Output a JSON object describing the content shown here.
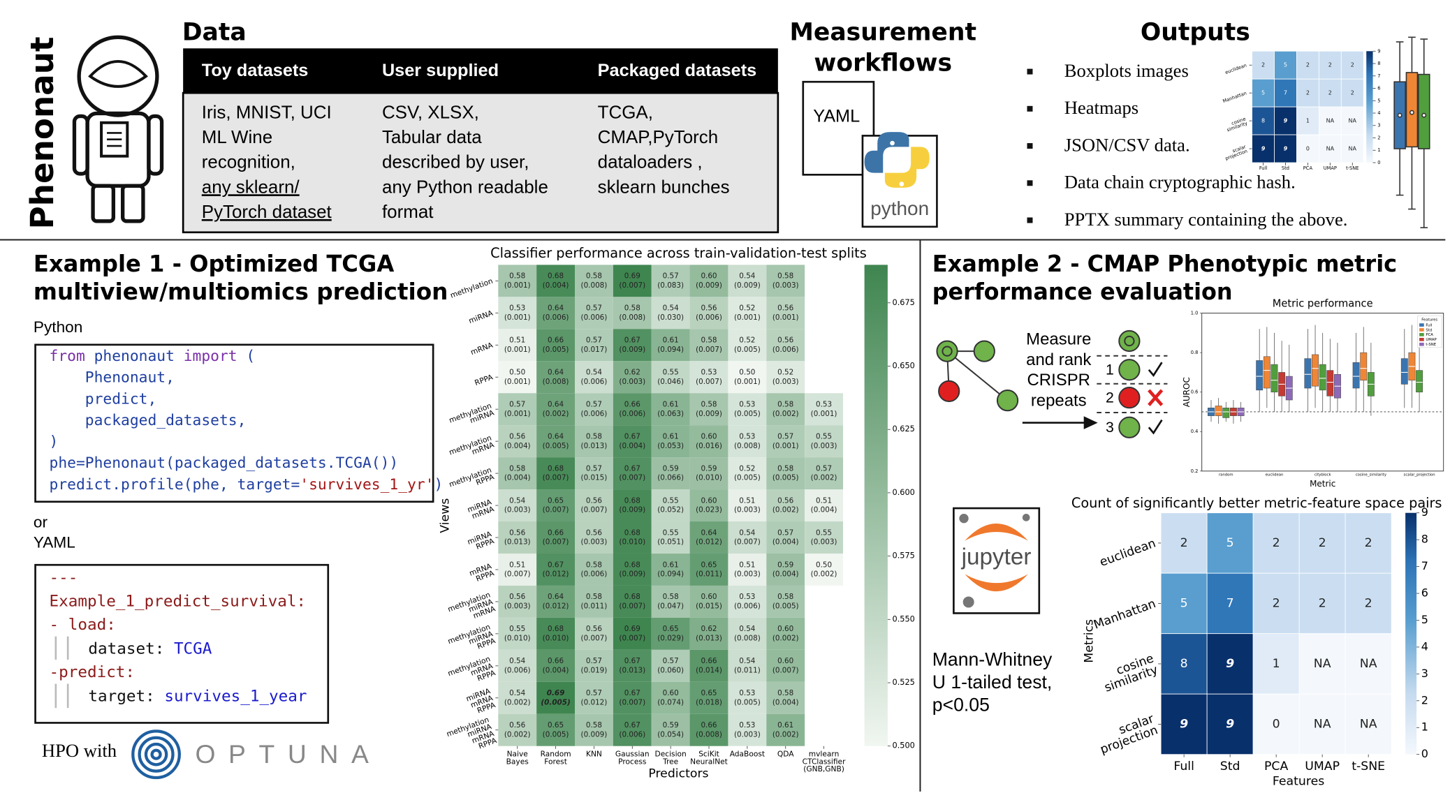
{
  "logo_text": "Phenonaut",
  "data_section": {
    "title": "Data",
    "columns": [
      {
        "header": "Toy datasets",
        "lines": [
          "Iris, MNIST,  UCI",
          "ML Wine",
          "recognition,",
          "any sklearn/",
          "PyTorch  dataset"
        ]
      },
      {
        "header": "User supplied",
        "lines": [
          "CSV, XLSX,",
          "Tabular data",
          "described by user,",
          "any Python readable",
          "format"
        ]
      },
      {
        "header": "Packaged datasets",
        "lines": [
          "TCGA,",
          "CMAP,PyTorch",
          "dataloaders ,",
          "sklearn bunches"
        ]
      }
    ]
  },
  "workflows": {
    "title_lines": [
      "Measurement",
      "workflows"
    ],
    "yaml_label": "YAML",
    "python_label": "python"
  },
  "outputs": {
    "title": "Outputs",
    "items": [
      "Boxplots images",
      "Heatmaps",
      "JSON/CSV data.",
      "Data chain cryptographic hash.",
      "PPTX summary containing the above."
    ]
  },
  "example1": {
    "title_lines": [
      "Example 1 - Optimized TCGA",
      "multiview/multiomics prediction"
    ],
    "code_label": "Python",
    "code_lines": [
      "from phenonaut import (",
      "    Phenonaut,",
      "    predict,",
      "    packaged_datasets,",
      ")",
      "phe=Phenonaut(packaged_datasets.TCGA())",
      "predict.profile(phe, target='survives_1_yr')"
    ],
    "or_text": "or",
    "yaml_label": "YAML",
    "yaml_lines": [
      "---",
      "Example_1_predict_survival:",
      "- load:",
      "dataset: TCGA",
      "-predict:",
      "target: survives_1_year"
    ],
    "hpo_text": "HPO with",
    "optuna_text": "OPTUNA"
  },
  "example2": {
    "title_lines": [
      "Example 2 - CMAP Phenotypic metric",
      "performance evaluation"
    ],
    "workflow_lines": [
      "Measure",
      "and rank",
      "CRISPR",
      "repeats"
    ],
    "rank_labels": [
      "1",
      "2",
      "3"
    ],
    "jupyter_text": "jupyter",
    "test_lines": [
      "Mann-Whitney",
      "U 1-tailed test,",
      "p<0.05"
    ]
  },
  "chart_data": [
    {
      "type": "heatmap",
      "title": "Classifier performance across train-validation-test splits",
      "x_label": "Predictors",
      "y_label": "Views",
      "x_categories": [
        [
          "Naive",
          "Bayes"
        ],
        [
          "Random",
          "Forest"
        ],
        [
          "KNN"
        ],
        [
          "Gaussian",
          "Process"
        ],
        [
          "Decision",
          "Tree"
        ],
        [
          "SciKit",
          "NeuralNet"
        ],
        [
          "AdaBoost"
        ],
        [
          "QDA"
        ],
        [
          "mvlearn",
          "CTClassifier",
          "(GNB,GNB)"
        ]
      ],
      "y_categories": [
        [
          "methylation"
        ],
        [
          "miRNA"
        ],
        [
          "mRNA"
        ],
        [
          "RPPA"
        ],
        [
          "methylation",
          "miRNA"
        ],
        [
          "methylation",
          "mRNA"
        ],
        [
          "methylation",
          "RPPA"
        ],
        [
          "miRNA",
          "mRNA"
        ],
        [
          "miRNA",
          "RPPA"
        ],
        [
          "mRNA",
          "RPPA"
        ],
        [
          "methylation",
          "miRNA",
          "mRNA"
        ],
        [
          "methylation",
          "miRNA",
          "RPPA"
        ],
        [
          "methylation",
          "mRNA",
          "RPPA"
        ],
        [
          "miRNA",
          "mRNA",
          "RPPA"
        ],
        [
          "methylation",
          "miRNA",
          "mRNA",
          "RPPA"
        ]
      ],
      "values": [
        [
          0.58,
          0.68,
          0.58,
          0.69,
          0.57,
          0.6,
          0.54,
          0.58,
          null
        ],
        [
          0.53,
          0.64,
          0.57,
          0.58,
          0.54,
          0.56,
          0.52,
          0.56,
          null
        ],
        [
          0.51,
          0.66,
          0.57,
          0.67,
          0.61,
          0.58,
          0.52,
          0.56,
          null
        ],
        [
          0.5,
          0.64,
          0.54,
          0.62,
          0.55,
          0.53,
          0.5,
          0.52,
          null
        ],
        [
          0.57,
          0.64,
          0.57,
          0.66,
          0.61,
          0.58,
          0.53,
          0.58,
          0.53
        ],
        [
          0.56,
          0.64,
          0.58,
          0.67,
          0.61,
          0.6,
          0.53,
          0.57,
          0.55
        ],
        [
          0.58,
          0.68,
          0.57,
          0.67,
          0.59,
          0.59,
          0.52,
          0.58,
          0.57
        ],
        [
          0.54,
          0.65,
          0.56,
          0.68,
          0.55,
          0.6,
          0.51,
          0.56,
          0.51
        ],
        [
          0.56,
          0.66,
          0.56,
          0.68,
          0.55,
          0.64,
          0.54,
          0.57,
          0.55
        ],
        [
          0.51,
          0.67,
          0.58,
          0.68,
          0.61,
          0.65,
          0.51,
          0.59,
          0.5
        ],
        [
          0.56,
          0.64,
          0.58,
          0.68,
          0.58,
          0.6,
          0.53,
          0.58,
          null
        ],
        [
          0.55,
          0.68,
          0.56,
          0.69,
          0.65,
          0.62,
          0.54,
          0.6,
          null
        ],
        [
          0.54,
          0.66,
          0.57,
          0.67,
          0.57,
          0.66,
          0.54,
          0.6,
          null
        ],
        [
          0.54,
          0.69,
          0.57,
          0.67,
          0.6,
          0.65,
          0.53,
          0.58,
          null
        ],
        [
          0.56,
          0.65,
          0.58,
          0.67,
          0.59,
          0.66,
          0.53,
          0.61,
          null
        ]
      ],
      "value_labels": [
        [
          "0.58",
          "0.68",
          "0.58",
          "0.69",
          "0.57",
          "0.60",
          "0.54",
          "0.58",
          null
        ],
        [
          "0.53",
          "0.64",
          "0.57",
          "0.58",
          "0.54",
          "0.56",
          "0.52",
          "0.56",
          null
        ],
        [
          "0.51",
          "0.66",
          "0.57",
          "0.67",
          "0.61",
          "0.58",
          "0.52",
          "0.56",
          null
        ],
        [
          "0.50",
          "0.64",
          "0.54",
          "0.62",
          "0.55",
          "0.53",
          "0.50",
          "0.52",
          null
        ],
        [
          "0.57",
          "0.64",
          "0.57",
          "0.66",
          "0.61",
          "0.58",
          "0.53",
          "0.58",
          "0.53"
        ],
        [
          "0.56",
          "0.64",
          "0.58",
          "0.67",
          "0.61",
          "0.60",
          "0.53",
          "0.57",
          "0.55"
        ],
        [
          "0.58",
          "0.68",
          "0.57",
          "0.67",
          "0.59",
          "0.59",
          "0.52",
          "0.58",
          "0.57"
        ],
        [
          "0.54",
          "0.65",
          "0.56",
          "0.68",
          "0.55",
          "0.60",
          "0.51",
          "0.56",
          "0.51"
        ],
        [
          "0.56",
          "0.66",
          "0.56",
          "0.68",
          "0.55",
          "0.64",
          "0.54",
          "0.57",
          "0.55"
        ],
        [
          "0.51",
          "0.67",
          "0.58",
          "0.68",
          "0.61",
          "0.65",
          "0.51",
          "0.59",
          "0.50"
        ],
        [
          "0.56",
          "0.64",
          "0.58",
          "0.68",
          "0.58",
          "0.60",
          "0.53",
          "0.58",
          null
        ],
        [
          "0.55",
          "0.68",
          "0.56",
          "0.69",
          "0.65",
          "0.62",
          "0.54",
          "0.60",
          null
        ],
        [
          "0.54",
          "0.66",
          "0.57",
          "0.67",
          "0.57",
          "0.66",
          "0.54",
          "0.60",
          null
        ],
        [
          "0.54",
          "0.69",
          "0.57",
          "0.67",
          "0.60",
          "0.65",
          "0.53",
          "0.58",
          null
        ],
        [
          "0.56",
          "0.65",
          "0.58",
          "0.67",
          "0.59",
          "0.66",
          "0.53",
          "0.61",
          null
        ]
      ],
      "error_labels": [
        [
          "(0.001)",
          "(0.004)",
          "(0.008)",
          "(0.007)",
          "(0.083)",
          "(0.009)",
          "(0.009)",
          "(0.003)",
          null
        ],
        [
          "(0.001)",
          "(0.006)",
          "(0.006)",
          "(0.008)",
          "(0.030)",
          "(0.006)",
          "(0.001)",
          "(0.001)",
          null
        ],
        [
          "(0.001)",
          "(0.005)",
          "(0.017)",
          "(0.009)",
          "(0.094)",
          "(0.007)",
          "(0.005)",
          "(0.006)",
          null
        ],
        [
          "(0.001)",
          "(0.008)",
          "(0.006)",
          "(0.003)",
          "(0.046)",
          "(0.007)",
          "(0.001)",
          "(0.003)",
          null
        ],
        [
          "(0.001)",
          "(0.002)",
          "(0.006)",
          "(0.006)",
          "(0.063)",
          "(0.009)",
          "(0.005)",
          "(0.002)",
          "(0.001)"
        ],
        [
          "(0.004)",
          "(0.005)",
          "(0.013)",
          "(0.004)",
          "(0.053)",
          "(0.016)",
          "(0.008)",
          "(0.001)",
          "(0.003)"
        ],
        [
          "(0.004)",
          "(0.007)",
          "(0.015)",
          "(0.007)",
          "(0.066)",
          "(0.010)",
          "(0.005)",
          "(0.005)",
          "(0.002)"
        ],
        [
          "(0.003)",
          "(0.007)",
          "(0.007)",
          "(0.009)",
          "(0.052)",
          "(0.023)",
          "(0.003)",
          "(0.002)",
          "(0.004)"
        ],
        [
          "(0.013)",
          "(0.007)",
          "(0.003)",
          "(0.010)",
          "(0.051)",
          "(0.012)",
          "(0.007)",
          "(0.004)",
          "(0.003)"
        ],
        [
          "(0.007)",
          "(0.012)",
          "(0.006)",
          "(0.009)",
          "(0.094)",
          "(0.011)",
          "(0.003)",
          "(0.004)",
          "(0.002)"
        ],
        [
          "(0.003)",
          "(0.012)",
          "(0.011)",
          "(0.007)",
          "(0.047)",
          "(0.015)",
          "(0.006)",
          "(0.005)",
          null
        ],
        [
          "(0.010)",
          "(0.010)",
          "(0.007)",
          "(0.007)",
          "(0.029)",
          "(0.013)",
          "(0.008)",
          "(0.002)",
          null
        ],
        [
          "(0.006)",
          "(0.004)",
          "(0.019)",
          "(0.013)",
          "(0.060)",
          "(0.014)",
          "(0.011)",
          "(0.007)",
          null
        ],
        [
          "(0.002)",
          "(0.005)",
          "(0.012)",
          "(0.007)",
          "(0.074)",
          "(0.018)",
          "(0.005)",
          "(0.004)",
          null
        ],
        [
          "(0.002)",
          "(0.005)",
          "(0.009)",
          "(0.006)",
          "(0.054)",
          "(0.008)",
          "(0.003)",
          "(0.002)",
          null
        ]
      ],
      "zlim": [
        0.5,
        0.69
      ],
      "colorbar_ticks": [
        {
          "value": 0.5,
          "label": "0.500"
        },
        {
          "value": 0.525,
          "label": "0.525"
        },
        {
          "value": 0.55,
          "label": "0.550"
        },
        {
          "value": 0.575,
          "label": "0.575"
        },
        {
          "value": 0.6,
          "label": "0.600"
        },
        {
          "value": 0.625,
          "label": "0.625"
        },
        {
          "value": 0.65,
          "label": "0.650"
        },
        {
          "value": 0.675,
          "label": "0.675"
        }
      ],
      "colors": [
        "#f1f6f1",
        "#3f8550"
      ]
    },
    {
      "type": "boxplot",
      "title": "Metric performance",
      "x_label": "Metric",
      "y_label": "AUROC",
      "legend_title": "Features",
      "legend": "upper right",
      "categories": [
        "random",
        "euclidean",
        "cityblock",
        "cosine_similarity",
        "scalar_projection"
      ],
      "ylim": [
        0.2,
        1.0
      ],
      "yticks": [
        {
          "value": 0.2,
          "label": "0.2"
        },
        {
          "value": 0.4,
          "label": "0.4"
        },
        {
          "value": 0.6,
          "label": "0.6"
        },
        {
          "value": 0.8,
          "label": "0.8"
        },
        {
          "value": 1.0,
          "label": "1.0"
        }
      ],
      "reference_line": 0.5,
      "series": [
        {
          "name": "Full",
          "color": "#3b75af",
          "values": [
            [
              0.45,
              0.48,
              0.5,
              0.52,
              0.56
            ],
            [
              0.5,
              0.61,
              0.68,
              0.76,
              0.92
            ],
            [
              0.5,
              0.62,
              0.69,
              0.77,
              0.92
            ],
            [
              0.5,
              0.62,
              0.68,
              0.75,
              0.9
            ],
            [
              0.52,
              0.64,
              0.7,
              0.77,
              0.92
            ]
          ]
        },
        {
          "name": "Std",
          "color": "#ef8636",
          "values": [
            [
              0.44,
              0.48,
              0.5,
              0.53,
              0.57
            ],
            [
              0.52,
              0.62,
              0.71,
              0.78,
              0.93
            ],
            [
              0.52,
              0.63,
              0.72,
              0.79,
              0.94
            ],
            [
              0.5,
              0.66,
              0.72,
              0.8,
              0.93
            ],
            [
              0.52,
              0.66,
              0.73,
              0.8,
              0.94
            ]
          ]
        },
        {
          "name": "PCA",
          "color": "#519e3e",
          "values": [
            [
              0.45,
              0.47,
              0.5,
              0.52,
              0.55
            ],
            [
              0.5,
              0.6,
              0.66,
              0.74,
              0.9
            ],
            [
              0.5,
              0.61,
              0.67,
              0.74,
              0.9
            ],
            [
              0.48,
              0.58,
              0.64,
              0.7,
              0.85
            ],
            [
              0.5,
              0.6,
              0.65,
              0.71,
              0.86
            ]
          ]
        },
        {
          "name": "UMAP",
          "color": "#c53a32",
          "values": [
            [
              0.44,
              0.48,
              0.5,
              0.52,
              0.56
            ],
            [
              0.5,
              0.58,
              0.64,
              0.7,
              0.86
            ],
            [
              0.5,
              0.58,
              0.65,
              0.71,
              0.87
            ],
            null,
            null
          ]
        },
        {
          "name": "t-SNE",
          "color": "#8d69b8",
          "values": [
            [
              0.45,
              0.48,
              0.5,
              0.52,
              0.55
            ],
            [
              0.5,
              0.56,
              0.62,
              0.68,
              0.84
            ],
            [
              0.5,
              0.57,
              0.63,
              0.69,
              0.85
            ],
            null,
            null
          ]
        }
      ]
    },
    {
      "type": "heatmap",
      "title": "Count of significantly better metric-feature space pairs",
      "x_label": "Features",
      "y_label": "Metrics",
      "x_categories": [
        [
          "Full"
        ],
        [
          "Std"
        ],
        [
          "PCA"
        ],
        [
          "UMAP"
        ],
        [
          "t-SNE"
        ]
      ],
      "y_categories": [
        [
          "euclidean"
        ],
        [
          "Manhattan"
        ],
        [
          "cosine",
          "similarity"
        ],
        [
          "scalar",
          "projection"
        ]
      ],
      "values": [
        [
          2,
          5,
          2,
          2,
          2
        ],
        [
          5,
          7,
          2,
          2,
          2
        ],
        [
          8,
          9,
          1,
          null,
          null
        ],
        [
          9,
          9,
          0,
          null,
          null
        ]
      ],
      "value_labels": [
        [
          "2",
          "5",
          "2",
          "2",
          "2"
        ],
        [
          "5",
          "7",
          "2",
          "2",
          "2"
        ],
        [
          "8",
          "9",
          "1",
          "NA",
          "NA"
        ],
        [
          "9",
          "9",
          "0",
          "NA",
          "NA"
        ]
      ],
      "zlim": [
        0,
        9
      ],
      "colorbar_ticks": [
        0,
        1,
        2,
        3,
        4,
        5,
        6,
        7,
        8,
        9
      ],
      "colors": [
        "#f4f8fd",
        "#08306b"
      ]
    }
  ]
}
